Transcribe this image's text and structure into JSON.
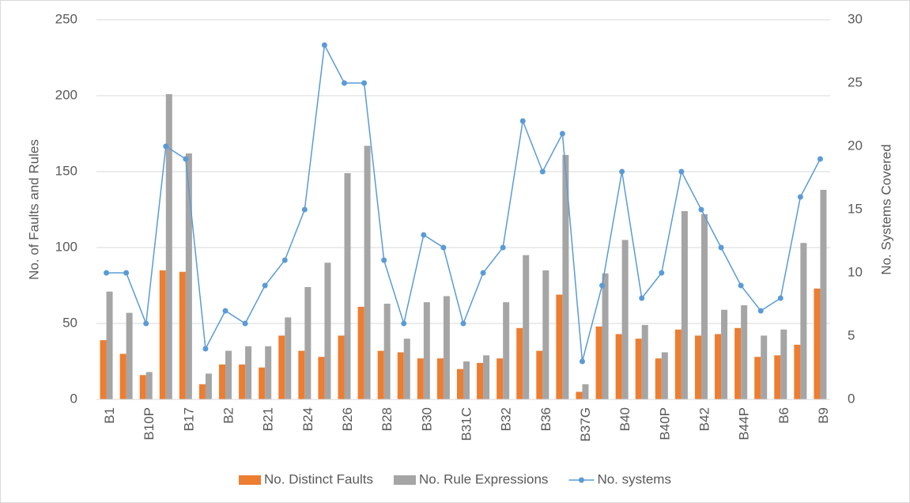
{
  "chart_data": {
    "type": "bar",
    "categories": [
      "B1",
      null,
      "B10P",
      null,
      "B17",
      null,
      "B2",
      null,
      "B21",
      null,
      "B24",
      null,
      "B26",
      null,
      "B28",
      null,
      "B30",
      null,
      "B31C",
      null,
      "B32",
      null,
      "B36",
      null,
      "B37G",
      null,
      "B40",
      null,
      "B40P",
      null,
      "B42",
      null,
      "B44P",
      null,
      "B6",
      null,
      "B9"
    ],
    "series": [
      {
        "name": "No. Distinct Faults",
        "color": "#ed7d31",
        "values": [
          39,
          30,
          16,
          85,
          84,
          10,
          23,
          23,
          21,
          42,
          32,
          28,
          42,
          61,
          32,
          31,
          27,
          27,
          20,
          24,
          27,
          47,
          32,
          69,
          5,
          48,
          43,
          40,
          27,
          46,
          42,
          43,
          47,
          28,
          29,
          36,
          73
        ]
      },
      {
        "name": "No. Rule Expressions",
        "color": "#a5a5a5",
        "values": [
          71,
          57,
          18,
          201,
          162,
          17,
          32,
          35,
          35,
          54,
          74,
          90,
          149,
          167,
          63,
          40,
          64,
          68,
          25,
          29,
          64,
          95,
          85,
          161,
          10,
          83,
          105,
          49,
          31,
          124,
          122,
          59,
          62,
          42,
          46,
          103,
          138
        ]
      },
      {
        "name": "No. systems",
        "color": "#5b9bd5",
        "type": "line",
        "axis": "y2",
        "values": [
          10,
          10,
          6,
          20,
          19,
          4,
          7,
          6,
          9,
          11,
          15,
          28,
          25,
          25,
          11,
          6,
          13,
          12,
          6,
          10,
          12,
          22,
          18,
          21,
          3,
          9,
          18,
          8,
          10,
          18,
          15,
          12,
          9,
          7,
          8,
          16,
          19
        ]
      }
    ],
    "y_label": "No. of Faults and Rules",
    "y2_label": "No. Systems Covered",
    "ylim": [
      0,
      250
    ],
    "yticks": [
      0,
      50,
      100,
      150,
      200,
      250
    ],
    "y2lim": [
      0,
      30
    ],
    "y2ticks": [
      0,
      5,
      10,
      15,
      20,
      25,
      30
    ],
    "grid": true,
    "legend": "bottom"
  }
}
